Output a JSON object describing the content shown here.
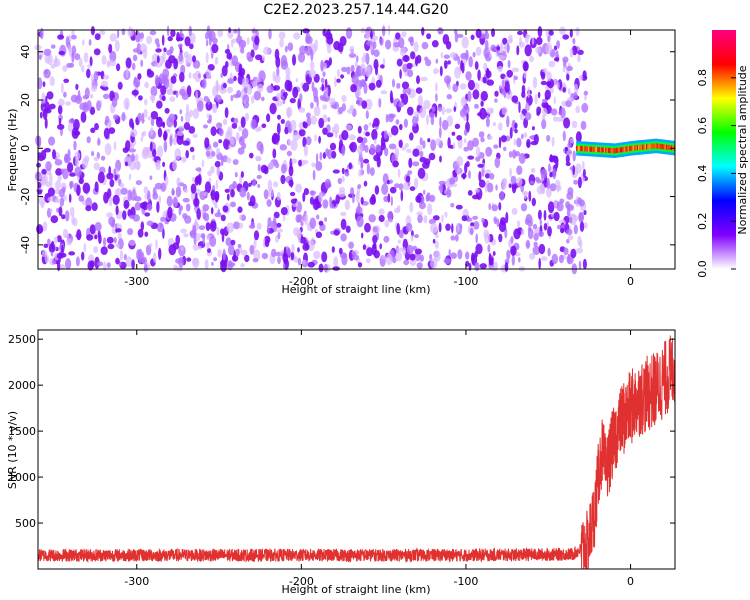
{
  "title": "C2E2.2023.257.14.44.G20",
  "chart_data": [
    {
      "type": "heatmap",
      "xlabel": "Height of straight line (km)",
      "ylabel": "Frequency (Hz)",
      "xlim": [
        -360,
        27
      ],
      "ylim": [
        -50,
        49
      ],
      "xticks": [
        -300,
        -200,
        -100,
        0
      ],
      "yticks": [
        -40,
        -20,
        0,
        20,
        40
      ],
      "colorbar": {
        "label": "Normalized spectral amplitude",
        "range": [
          0,
          1
        ],
        "ticks": [
          0.0,
          0.2,
          0.4,
          0.6,
          0.8
        ],
        "colormap": [
          "#ffffff",
          "#8000ff",
          "#0000ff",
          "#00ffff",
          "#00ff00",
          "#ffff00",
          "#ff0000",
          "#ff0080"
        ]
      },
      "noise_region": {
        "x": [
          -360,
          -27
        ],
        "level": 0.05
      },
      "signal_band": {
        "x": [
          -33,
          27
        ],
        "frequency_center": [
          [
            -33,
            0
          ],
          [
            -10,
            -1
          ],
          [
            0,
            0
          ],
          [
            15,
            1
          ],
          [
            27,
            0
          ]
        ],
        "halfwidth_hz": 3,
        "peak": 0.85
      }
    },
    {
      "type": "line",
      "xlabel": "Height of straight line (km)",
      "ylabel": "SNR (10 * v/v)",
      "xlim": [
        -360,
        27
      ],
      "ylim": [
        0,
        2600
      ],
      "xticks": [
        -300,
        -200,
        -100,
        0
      ],
      "yticks": [
        500,
        1000,
        1500,
        2000,
        2500
      ],
      "series": [
        {
          "color": "#e03030",
          "x": [
            -360,
            -300,
            -200,
            -100,
            -35,
            -26,
            -22,
            -19,
            -17,
            -15,
            -13,
            -11,
            -9,
            -7,
            -5,
            -3,
            0,
            5,
            10,
            15,
            20,
            25,
            27
          ],
          "values": [
            150,
            150,
            150,
            150,
            160,
            260,
            600,
            1100,
            1300,
            1050,
            1200,
            1350,
            1450,
            1550,
            1650,
            1650,
            1750,
            1850,
            1900,
            1950,
            2050,
            2150,
            2200
          ]
        }
      ]
    }
  ]
}
